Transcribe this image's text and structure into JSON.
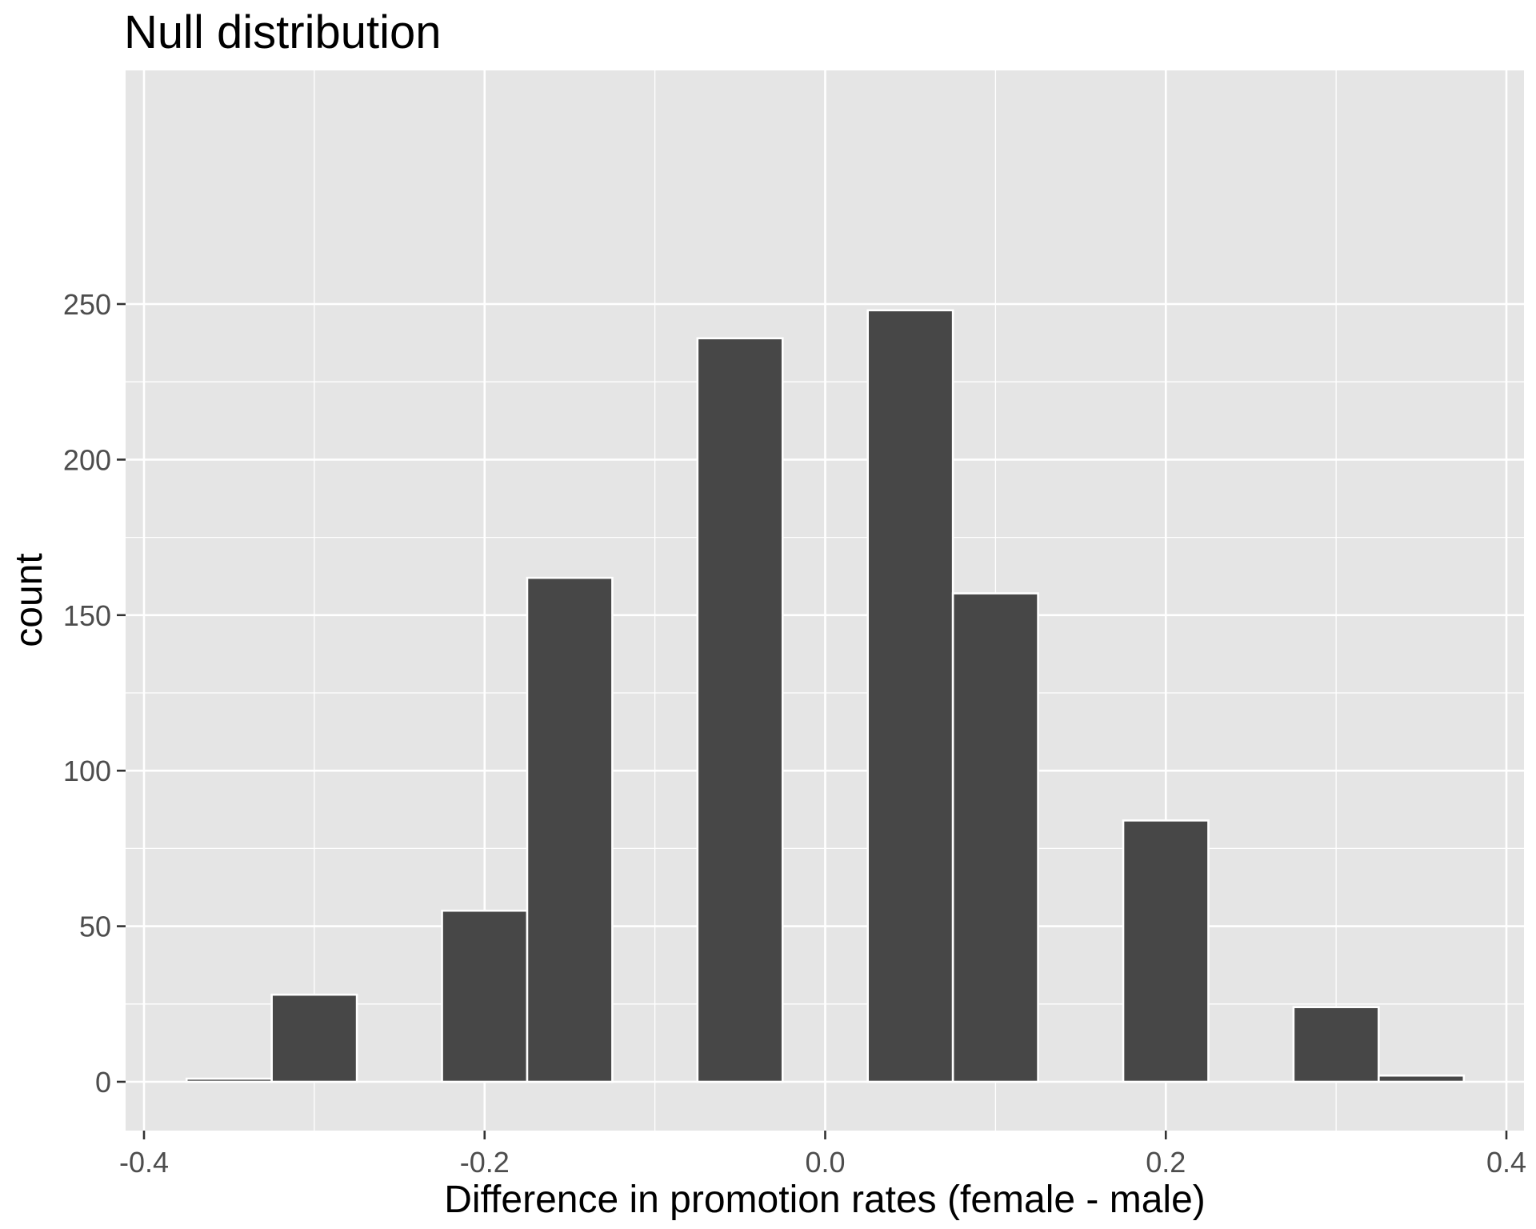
{
  "chart_data": {
    "type": "bar",
    "title": "Null distribution",
    "xlabel": "Difference in promotion rates (female - male)",
    "ylabel": "count",
    "xlim": [
      -0.4,
      0.4
    ],
    "ylim": [
      0,
      250
    ],
    "x_ticks": [
      -0.4,
      -0.2,
      0.0,
      0.2,
      0.4
    ],
    "x_tick_labels": [
      "-0.4",
      "-0.2",
      "0.0",
      "0.2",
      "0.4"
    ],
    "y_ticks": [
      0,
      50,
      100,
      150,
      200,
      250
    ],
    "y_tick_labels": [
      "0",
      "50",
      "100",
      "150",
      "200",
      "250"
    ],
    "grid": true,
    "bin_width": 0.05,
    "bins": [
      {
        "center": -0.35,
        "count": 1
      },
      {
        "center": -0.3,
        "count": 28
      },
      {
        "center": -0.25,
        "count": 0
      },
      {
        "center": -0.2,
        "count": 55
      },
      {
        "center": -0.15,
        "count": 162
      },
      {
        "center": -0.1,
        "count": 0
      },
      {
        "center": -0.05,
        "count": 239
      },
      {
        "center": 0.0,
        "count": 0
      },
      {
        "center": 0.05,
        "count": 248
      },
      {
        "center": 0.1,
        "count": 157
      },
      {
        "center": 0.15,
        "count": 0
      },
      {
        "center": 0.2,
        "count": 84
      },
      {
        "center": 0.25,
        "count": 0
      },
      {
        "center": 0.3,
        "count": 24
      },
      {
        "center": 0.35,
        "count": 2
      }
    ],
    "colors": {
      "bar_fill": "#474747",
      "bar_outline": "#ffffff",
      "panel_background": "#e5e5e5",
      "grid": "#ffffff"
    }
  }
}
